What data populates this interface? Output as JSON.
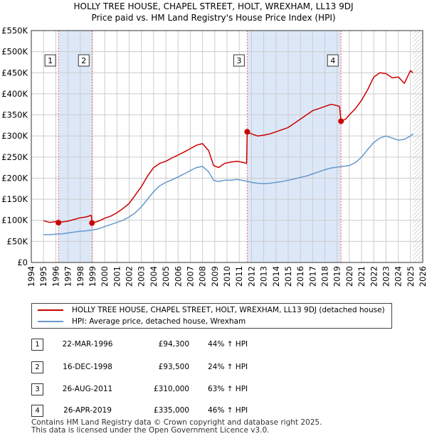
{
  "title_line1": "HOLLY TREE HOUSE, CHAPEL STREET, HOLT, WREXHAM, LL13 9DJ",
  "title_line2": "Price paid vs. HM Land Registry's House Price Index (HPI)",
  "colors": {
    "property": "#cc0000",
    "hpi": "#6699cc",
    "highlight": "#dce8f8",
    "grid": "#cccccc",
    "marker_line": "#ff6666"
  },
  "legend": {
    "property_label": "HOLLY TREE HOUSE, CHAPEL STREET, HOLT, WREXHAM, LL13 9DJ (detached house)",
    "hpi_label": "HPI: Average price, detached house, Wrexham"
  },
  "transactions": [
    {
      "num": "1",
      "date": "22-MAR-1996",
      "price": "£94,300",
      "hpi_change": "44% ↑ HPI"
    },
    {
      "num": "2",
      "date": "16-DEC-1998",
      "price": "£93,500",
      "hpi_change": "24% ↑ HPI"
    },
    {
      "num": "3",
      "date": "26-AUG-2011",
      "price": "£310,000",
      "hpi_change": "63% ↑ HPI"
    },
    {
      "num": "4",
      "date": "26-APR-2019",
      "price": "£335,000",
      "hpi_change": "46% ↑ HPI"
    }
  ],
  "footer_line1": "Contains HM Land Registry data © Crown copyright and database right 2025.",
  "footer_line2": "This data is licensed under the Open Government Licence v3.0.",
  "chart_data": {
    "type": "line",
    "title": "HOLLY TREE HOUSE, CHAPEL STREET, HOLT, WREXHAM, LL13 9DJ",
    "subtitle": "Price paid vs. HM Land Registry's House Price Index (HPI)",
    "xlabel": "",
    "ylabel": "",
    "xlim": [
      1994,
      2026
    ],
    "ylim": [
      0,
      550000
    ],
    "x_ticks": [
      1994,
      1995,
      1996,
      1997,
      1998,
      1999,
      2000,
      2001,
      2002,
      2003,
      2004,
      2005,
      2006,
      2007,
      2008,
      2009,
      2010,
      2011,
      2012,
      2013,
      2014,
      2015,
      2016,
      2017,
      2018,
      2019,
      2020,
      2021,
      2022,
      2023,
      2024,
      2025,
      2026
    ],
    "y_ticks": [
      {
        "value": 0,
        "label": "£0"
      },
      {
        "value": 50000,
        "label": "£50K"
      },
      {
        "value": 100000,
        "label": "£100K"
      },
      {
        "value": 150000,
        "label": "£150K"
      },
      {
        "value": 200000,
        "label": "£200K"
      },
      {
        "value": 250000,
        "label": "£250K"
      },
      {
        "value": 300000,
        "label": "£300K"
      },
      {
        "value": 350000,
        "label": "£350K"
      },
      {
        "value": 400000,
        "label": "£400K"
      },
      {
        "value": 450000,
        "label": "£450K"
      },
      {
        "value": 500000,
        "label": "£500K"
      },
      {
        "value": 550000,
        "label": "£550K"
      }
    ],
    "grid": true,
    "shaded_periods": [
      [
        1996.22,
        1998.96
      ],
      [
        2011.65,
        2019.32
      ]
    ],
    "data_end": 2025.2,
    "sales": [
      {
        "label": "1",
        "x": 1996.22,
        "y": 94300
      },
      {
        "label": "2",
        "x": 1998.96,
        "y": 93500
      },
      {
        "label": "3",
        "x": 2011.65,
        "y": 310000
      },
      {
        "label": "4",
        "x": 2019.32,
        "y": 335000
      }
    ],
    "series": [
      {
        "name": "HOLLY TREE HOUSE, CHAPEL STREET, HOLT, WREXHAM, LL13 9DJ (detached house)",
        "x": [
          1995.0,
          1995.5,
          1996.0,
          1996.22,
          1996.5,
          1997.0,
          1997.5,
          1998.0,
          1998.5,
          1998.9,
          1998.96,
          1999.5,
          2000.0,
          2000.5,
          2001.0,
          2001.5,
          2002.0,
          2002.5,
          2003.0,
          2003.5,
          2004.0,
          2004.5,
          2005.0,
          2005.5,
          2006.0,
          2006.5,
          2007.0,
          2007.5,
          2008.0,
          2008.5,
          2008.9,
          2009.3,
          2009.8,
          2010.3,
          2010.8,
          2011.2,
          2011.6,
          2011.65,
          2012.0,
          2012.5,
          2013.0,
          2013.5,
          2014.0,
          2014.5,
          2015.0,
          2015.5,
          2016.0,
          2016.5,
          2017.0,
          2017.5,
          2018.0,
          2018.5,
          2019.0,
          2019.2,
          2019.32,
          2019.7,
          2020.0,
          2020.5,
          2021.0,
          2021.5,
          2022.0,
          2022.5,
          2023.0,
          2023.5,
          2024.0,
          2024.5,
          2025.0,
          2025.2
        ],
        "y": [
          99000,
          95000,
          97000,
          94300,
          96000,
          98000,
          102000,
          106000,
          108000,
          112000,
          93500,
          98000,
          105000,
          110000,
          118000,
          128000,
          140000,
          160000,
          180000,
          205000,
          225000,
          235000,
          240000,
          248000,
          255000,
          262000,
          270000,
          278000,
          282000,
          265000,
          230000,
          225000,
          235000,
          238000,
          240000,
          238000,
          235000,
          310000,
          305000,
          300000,
          302000,
          305000,
          310000,
          315000,
          320000,
          330000,
          340000,
          350000,
          360000,
          365000,
          370000,
          375000,
          372000,
          370000,
          335000,
          340000,
          350000,
          365000,
          385000,
          410000,
          440000,
          450000,
          448000,
          438000,
          440000,
          425000,
          455000,
          450000
        ]
      },
      {
        "name": "HPI: Average price, detached house, Wrexham",
        "x": [
          1995.0,
          1995.5,
          1996.0,
          1996.5,
          1997.0,
          1997.5,
          1998.0,
          1998.5,
          1999.0,
          1999.5,
          2000.0,
          2000.5,
          2001.0,
          2001.5,
          2002.0,
          2002.5,
          2003.0,
          2003.5,
          2004.0,
          2004.5,
          2005.0,
          2005.5,
          2006.0,
          2006.5,
          2007.0,
          2007.5,
          2008.0,
          2008.5,
          2008.9,
          2009.3,
          2009.8,
          2010.3,
          2010.8,
          2011.2,
          2011.6,
          2012.0,
          2012.5,
          2013.0,
          2013.5,
          2014.0,
          2014.5,
          2015.0,
          2015.5,
          2016.0,
          2016.5,
          2017.0,
          2017.5,
          2018.0,
          2018.5,
          2019.0,
          2019.5,
          2020.0,
          2020.5,
          2021.0,
          2021.5,
          2022.0,
          2022.5,
          2023.0,
          2023.5,
          2024.0,
          2024.5,
          2025.0,
          2025.2
        ],
        "y": [
          66000,
          66000,
          67000,
          68000,
          70000,
          72000,
          74000,
          75000,
          77000,
          80000,
          85000,
          90000,
          95000,
          100000,
          108000,
          118000,
          132000,
          150000,
          168000,
          182000,
          190000,
          196000,
          203000,
          210000,
          218000,
          225000,
          228000,
          215000,
          195000,
          192000,
          195000,
          195000,
          197000,
          195000,
          193000,
          190000,
          188000,
          187000,
          188000,
          190000,
          192000,
          195000,
          198000,
          202000,
          205000,
          210000,
          215000,
          220000,
          224000,
          226000,
          228000,
          230000,
          237000,
          250000,
          268000,
          285000,
          295000,
          300000,
          295000,
          290000,
          292000,
          300000,
          305000
        ]
      }
    ]
  }
}
